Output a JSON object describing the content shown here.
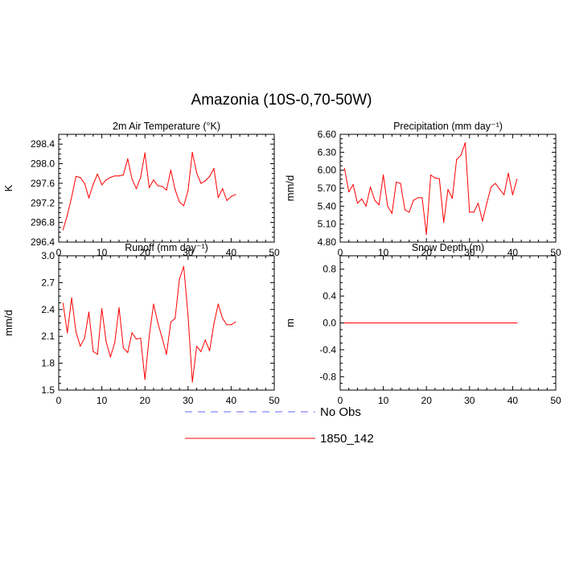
{
  "title": "Amazonia (10S-0,70-50W)",
  "colors": {
    "model": "#ff0000",
    "obs": "#6666ff",
    "axis": "#000000"
  },
  "legend": {
    "entries": [
      {
        "label": "No Obs",
        "style": "dashed",
        "color": "#6666ff"
      },
      {
        "label": "1850_142",
        "style": "solid",
        "color": "#ff0000"
      }
    ]
  },
  "chart_data": [
    {
      "type": "line",
      "title": "2m Air Temperature (°K)",
      "xlabel": "",
      "ylabel": "K",
      "xlim": [
        0,
        50
      ],
      "ylim": [
        296.4,
        298.6
      ],
      "xticks": [
        0,
        10,
        20,
        30,
        40,
        50
      ],
      "xtick_labels": [
        "0",
        "10",
        "20",
        "30",
        "40",
        "50"
      ],
      "yticks": [
        296.4,
        296.8,
        297.2,
        297.6,
        298.0,
        298.4
      ],
      "ytick_labels": [
        "296.4",
        "296.8",
        "297.2",
        "297.6",
        "298.0",
        "298.4"
      ],
      "series": [
        {
          "name": "1850_142",
          "x": [
            1,
            2,
            3,
            4,
            5,
            6,
            7,
            8,
            9,
            10,
            11,
            12,
            13,
            14,
            15,
            16,
            17,
            18,
            19,
            20,
            21,
            22,
            23,
            24,
            25,
            26,
            27,
            28,
            29,
            30,
            31,
            32,
            33,
            34,
            35,
            36,
            37,
            38,
            39,
            40,
            41
          ],
          "y": [
            296.65,
            296.95,
            297.32,
            297.74,
            297.72,
            297.6,
            297.3,
            297.58,
            297.79,
            297.57,
            297.67,
            297.72,
            297.75,
            297.75,
            297.77,
            298.1,
            297.69,
            297.49,
            297.72,
            298.22,
            297.51,
            297.67,
            297.55,
            297.54,
            297.46,
            297.87,
            297.47,
            297.22,
            297.14,
            297.45,
            298.23,
            297.81,
            297.6,
            297.65,
            297.74,
            297.9,
            297.31,
            297.49,
            297.25,
            297.33,
            297.37
          ]
        }
      ]
    },
    {
      "type": "line",
      "title": "Precipitation (mm day⁻¹)",
      "xlabel": "",
      "ylabel": "mm/d",
      "xlim": [
        0,
        50
      ],
      "ylim": [
        4.8,
        6.6
      ],
      "xticks": [
        0,
        10,
        20,
        30,
        40,
        50
      ],
      "xtick_labels": [
        "0",
        "10",
        "20",
        "30",
        "40",
        "50"
      ],
      "yticks": [
        4.8,
        5.1,
        5.4,
        5.7,
        6.0,
        6.3,
        6.6
      ],
      "ytick_labels": [
        "4.80",
        "5.10",
        "5.40",
        "5.70",
        "6.00",
        "6.30",
        "6.60"
      ],
      "series": [
        {
          "name": "1850_142",
          "x": [
            1,
            2,
            3,
            4,
            5,
            6,
            7,
            8,
            9,
            10,
            11,
            12,
            13,
            14,
            15,
            16,
            17,
            18,
            19,
            20,
            21,
            22,
            23,
            24,
            25,
            26,
            27,
            28,
            29,
            30,
            31,
            32,
            33,
            34,
            35,
            36,
            37,
            38,
            39,
            40,
            41
          ],
          "y": [
            6.03,
            5.64,
            5.76,
            5.45,
            5.52,
            5.4,
            5.72,
            5.5,
            5.42,
            5.92,
            5.4,
            5.28,
            5.8,
            5.78,
            5.34,
            5.3,
            5.5,
            5.54,
            5.54,
            4.93,
            5.92,
            5.87,
            5.86,
            5.13,
            5.68,
            5.53,
            6.18,
            6.25,
            6.46,
            5.3,
            5.3,
            5.45,
            5.15,
            5.45,
            5.72,
            5.78,
            5.68,
            5.59,
            5.95,
            5.59,
            5.85
          ]
        }
      ]
    },
    {
      "type": "line",
      "title": "Runoff (mm day⁻¹)",
      "xlabel": "",
      "ylabel": "mm/d",
      "xlim": [
        0,
        50
      ],
      "ylim": [
        1.5,
        3.0
      ],
      "xticks": [
        0,
        10,
        20,
        30,
        40,
        50
      ],
      "xtick_labels": [
        "0",
        "10",
        "20",
        "30",
        "40",
        "50"
      ],
      "yticks": [
        1.5,
        1.8,
        2.1,
        2.4,
        2.7,
        3.0
      ],
      "ytick_labels": [
        "1.5",
        "1.8",
        "2.1",
        "2.4",
        "2.7",
        "3.0"
      ],
      "series": [
        {
          "name": "1850_142",
          "x": [
            1,
            2,
            3,
            4,
            5,
            6,
            7,
            8,
            9,
            10,
            11,
            12,
            13,
            14,
            15,
            16,
            17,
            18,
            19,
            20,
            21,
            22,
            23,
            24,
            25,
            26,
            27,
            28,
            29,
            30,
            31,
            32,
            33,
            34,
            35,
            36,
            37,
            38,
            39,
            40,
            41
          ],
          "y": [
            2.47,
            2.14,
            2.53,
            2.15,
            1.99,
            2.08,
            2.37,
            1.93,
            1.9,
            2.41,
            2.04,
            1.87,
            2.03,
            2.42,
            1.97,
            1.92,
            2.14,
            2.07,
            2.08,
            1.62,
            2.1,
            2.46,
            2.25,
            2.08,
            1.9,
            2.26,
            2.3,
            2.74,
            2.88,
            2.33,
            1.59,
            1.99,
            1.93,
            2.06,
            1.94,
            2.24,
            2.46,
            2.3,
            2.23,
            2.23,
            2.26
          ]
        }
      ]
    },
    {
      "type": "line",
      "title": "Snow Depth (m)",
      "xlabel": "",
      "ylabel": "m",
      "xlim": [
        0,
        50
      ],
      "ylim": [
        -1.0,
        1.0
      ],
      "xticks": [
        0,
        10,
        20,
        30,
        40,
        50
      ],
      "xtick_labels": [
        "0",
        "10",
        "20",
        "30",
        "40",
        "50"
      ],
      "yticks": [
        -0.8,
        -0.4,
        0.0,
        0.4,
        0.8
      ],
      "ytick_labels": [
        "-0.8",
        "-0.4",
        "0.0",
        "0.4",
        "0.8"
      ],
      "series": [
        {
          "name": "1850_142",
          "x": [
            1,
            41
          ],
          "y": [
            0.0,
            0.0
          ]
        }
      ]
    }
  ]
}
